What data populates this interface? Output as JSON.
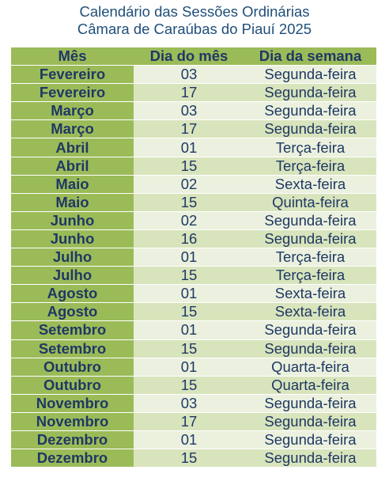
{
  "title": {
    "line1": "Calendário das Sessões Ordinárias",
    "line2": "Câmara de Caraúbas do Piauí 2025"
  },
  "table": {
    "headers": [
      "Mês",
      "Dia do mês",
      "Dia da semana"
    ],
    "rows": [
      [
        "Fevereiro",
        "03",
        "Segunda-feira"
      ],
      [
        "Fevereiro",
        "17",
        "Segunda-feira"
      ],
      [
        "Março",
        "03",
        "Segunda-feira"
      ],
      [
        "Março",
        "17",
        "Segunda-feira"
      ],
      [
        "Abril",
        "01",
        "Terça-feira"
      ],
      [
        "Abril",
        "15",
        "Terça-feira"
      ],
      [
        "Maio",
        "02",
        "Sexta-feira"
      ],
      [
        "Maio",
        "15",
        "Quinta-feira"
      ],
      [
        "Junho",
        "02",
        "Segunda-feira"
      ],
      [
        "Junho",
        "16",
        "Segunda-feira"
      ],
      [
        "Julho",
        "01",
        "Terça-feira"
      ],
      [
        "Julho",
        "15",
        "Terça-feira"
      ],
      [
        "Agosto",
        "01",
        "Sexta-feira"
      ],
      [
        "Agosto",
        "15",
        "Sexta-feira"
      ],
      [
        "Setembro",
        "01",
        "Segunda-feira"
      ],
      [
        "Setembro",
        "15",
        "Segunda-feira"
      ],
      [
        "Outubro",
        "01",
        "Quarta-feira"
      ],
      [
        "Outubro",
        "15",
        "Quarta-feira"
      ],
      [
        "Novembro",
        "03",
        "Segunda-feira"
      ],
      [
        "Novembro",
        "17",
        "Segunda-feira"
      ],
      [
        "Dezembro",
        "01",
        "Segunda-feira"
      ],
      [
        "Dezembro",
        "15",
        "Segunda-feira"
      ]
    ]
  },
  "colors": {
    "title": "#1f4e79",
    "month_column": "#9bbb59",
    "row_light": "#ebf1de",
    "row_dark": "#d8e4bc",
    "text": "#1f3864"
  }
}
